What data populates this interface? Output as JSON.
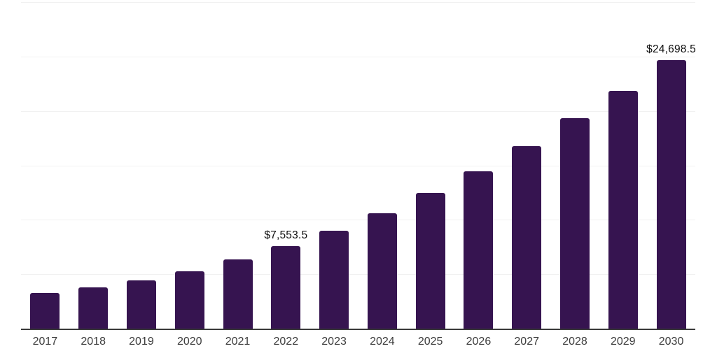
{
  "chart_data": {
    "type": "bar",
    "title": "",
    "xlabel": "",
    "ylabel": "",
    "categories": [
      "2017",
      "2018",
      "2019",
      "2020",
      "2021",
      "2022",
      "2023",
      "2024",
      "2025",
      "2026",
      "2027",
      "2028",
      "2029",
      "2030"
    ],
    "values": [
      3280,
      3790,
      4440,
      5270,
      6370,
      7553.5,
      9000,
      10610,
      12440,
      14470,
      16780,
      19350,
      21860,
      24698.5
    ],
    "annotations": [
      {
        "category": "2022",
        "text": "$7,553.5"
      },
      {
        "category": "2030",
        "text": "$24,698.5"
      }
    ],
    "ylim": [
      0,
      30000
    ],
    "gridline_interval": 5000,
    "grid": true,
    "legend": "none",
    "colors": {
      "bar": "#361450",
      "gridline": "#f1f1f1",
      "axis_line": "#3a3a3a",
      "tick_label": "#3c3c3c",
      "data_label": "#0d0d0d",
      "background": "#ffffff"
    }
  }
}
